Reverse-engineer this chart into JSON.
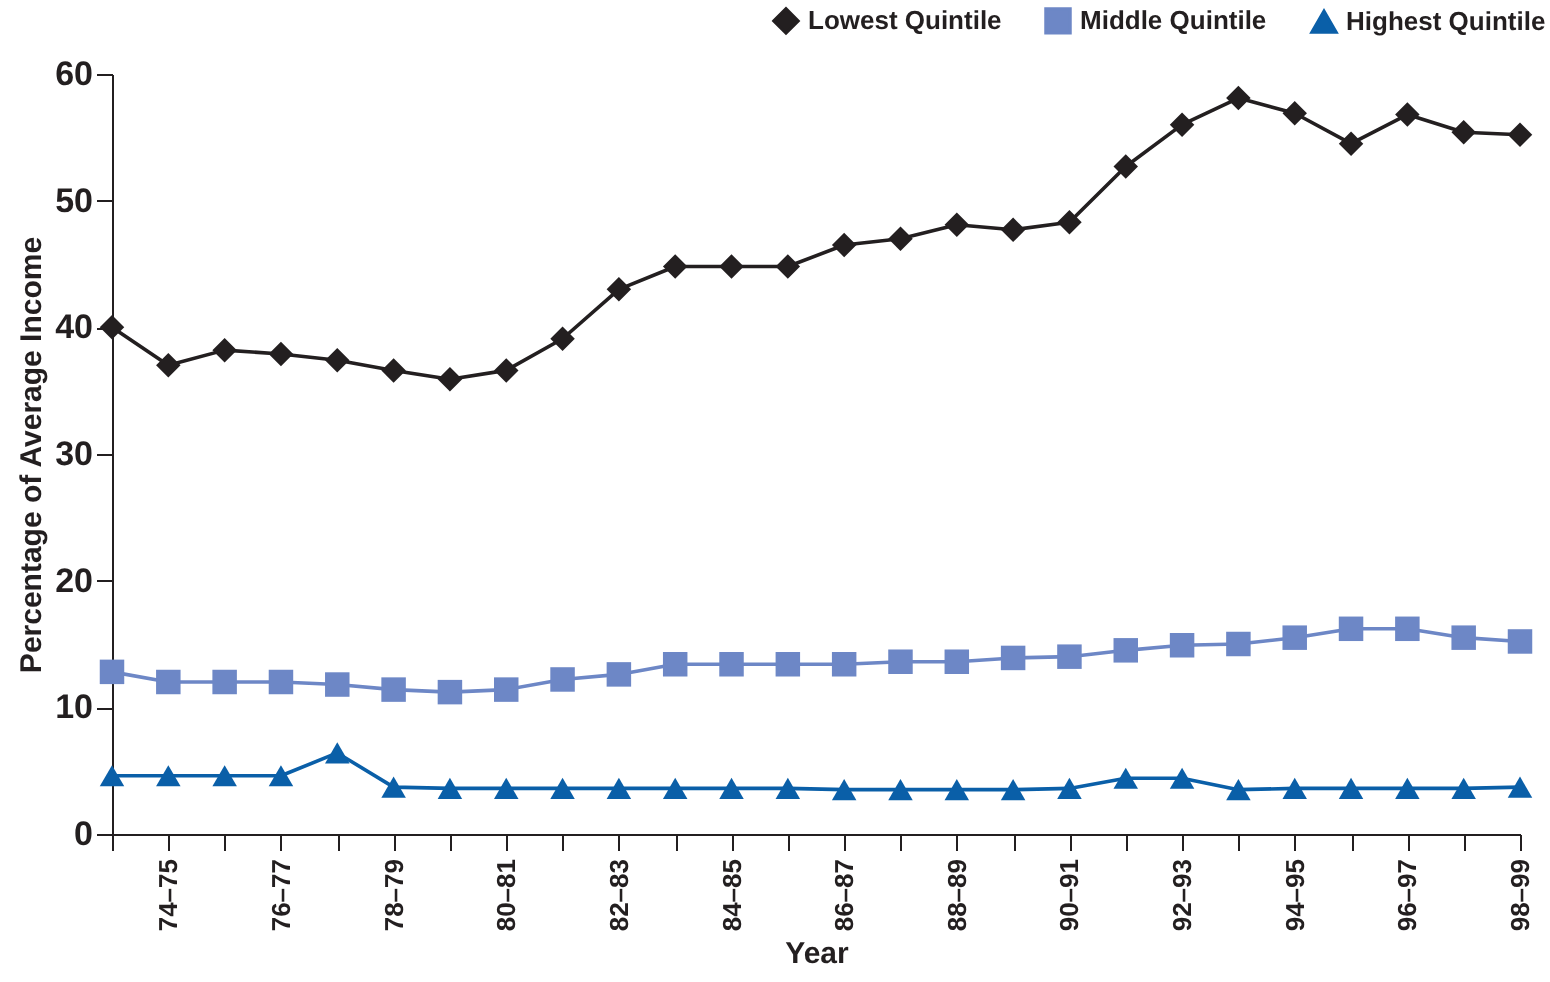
{
  "chart_data": {
    "type": "line",
    "xlabel": "Year",
    "ylabel": "Percentage of Average Income",
    "categories": [
      null,
      "74–75",
      null,
      "76–77",
      null,
      "78–79",
      null,
      "80–81",
      null,
      "82–83",
      null,
      "84–85",
      null,
      "86–87",
      null,
      "88–89",
      null,
      "90–91",
      null,
      "92–93",
      null,
      "94–95",
      null,
      "96–97",
      null,
      "98–99"
    ],
    "series": [
      {
        "name": "Lowest Quintile",
        "color": "#231f20",
        "marker": "diamond",
        "values": [
          40,
          37,
          38.2,
          37.9,
          37.4,
          36.6,
          35.9,
          36.6,
          39.1,
          43,
          44.8,
          44.8,
          44.8,
          46.5,
          47,
          48.1,
          47.7,
          48.3,
          52.7,
          56,
          58.1,
          56.9,
          54.5,
          56.8,
          55.4,
          55.2
        ]
      },
      {
        "name": "Middle Quintile",
        "color": "#6d87c6",
        "marker": "square",
        "values": [
          12.8,
          12,
          12,
          12,
          11.8,
          11.4,
          11.2,
          11.4,
          12.2,
          12.6,
          13.4,
          13.4,
          13.4,
          13.4,
          13.6,
          13.6,
          13.9,
          14,
          14.5,
          14.9,
          15,
          15.5,
          16.2,
          16.2,
          15.5,
          15.2
        ]
      },
      {
        "name": "Highest Quintile",
        "color": "#0a5fa8",
        "marker": "triangle",
        "values": [
          4.6,
          4.6,
          4.6,
          4.6,
          6.4,
          3.7,
          3.6,
          3.6,
          3.6,
          3.6,
          3.6,
          3.6,
          3.6,
          3.5,
          3.5,
          3.5,
          3.5,
          3.6,
          4.4,
          4.4,
          3.5,
          3.6,
          3.6,
          3.6,
          3.6,
          3.7
        ]
      }
    ],
    "ylim": [
      0,
      60
    ],
    "yticks": [
      0,
      10,
      20,
      30,
      40,
      50,
      60
    ],
    "grid": false,
    "legend": "top right",
    "line_style": "solid"
  }
}
